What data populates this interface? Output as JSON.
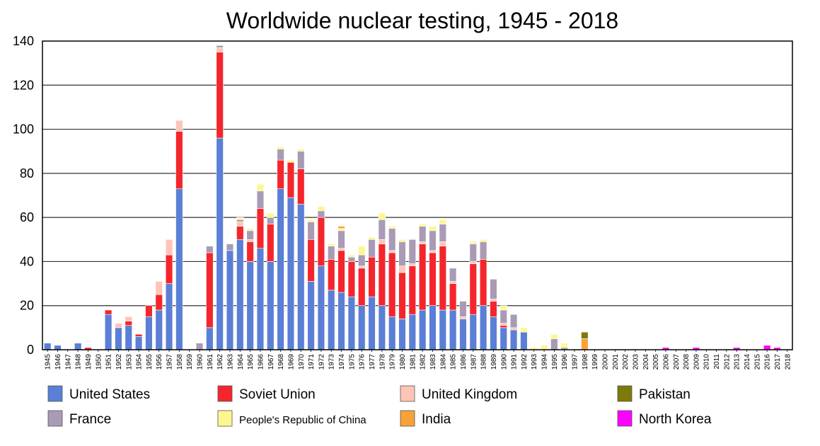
{
  "chart_data": {
    "type": "bar",
    "stacked": true,
    "title": "Worldwide nuclear testing, 1945 - 2018",
    "xlabel": "",
    "ylabel": "",
    "ylim": [
      0,
      140
    ],
    "yticks": [
      0,
      20,
      40,
      60,
      80,
      100,
      120,
      140
    ],
    "grid": true,
    "legend_position": "bottom",
    "categories": [
      "1945",
      "1946",
      "1947",
      "1948",
      "1949",
      "1950",
      "1951",
      "1952",
      "1953",
      "1954",
      "1955",
      "1956",
      "1957",
      "1958",
      "1959",
      "1960",
      "1961",
      "1962",
      "1963",
      "1964",
      "1965",
      "1966",
      "1967",
      "1968",
      "1969",
      "1970",
      "1971",
      "1972",
      "1973",
      "1974",
      "1975",
      "1976",
      "1977",
      "1978",
      "1979",
      "1980",
      "1981",
      "1982",
      "1983",
      "1984",
      "1985",
      "1986",
      "1987",
      "1988",
      "1989",
      "1990",
      "1991",
      "1992",
      "1993",
      "1994",
      "1995",
      "1996",
      "1997",
      "1998",
      "1999",
      "2000",
      "2001",
      "2002",
      "2003",
      "2004",
      "2005",
      "2006",
      "2007",
      "2008",
      "2009",
      "2010",
      "2011",
      "2012",
      "2013",
      "2014",
      "2015",
      "2016",
      "2017",
      "2018"
    ],
    "series": [
      {
        "name": "United States",
        "color": "#5b7fd6",
        "values": [
          3,
          2,
          0,
          3,
          0,
          0,
          16,
          10,
          11,
          6,
          15,
          18,
          30,
          73,
          0,
          0,
          10,
          96,
          45,
          50,
          40,
          46,
          40,
          73,
          69,
          66,
          31,
          38,
          27,
          26,
          24,
          20,
          24,
          20,
          15,
          14,
          16,
          18,
          20,
          18,
          18,
          14,
          16,
          20,
          15,
          10,
          9,
          8,
          0,
          0,
          0,
          0,
          0,
          0,
          0,
          0,
          0,
          0,
          0,
          0,
          0,
          0,
          0,
          0,
          0,
          0,
          0,
          0,
          0,
          0,
          0,
          0,
          0,
          0
        ]
      },
      {
        "name": "Soviet Union",
        "color": "#f4262c",
        "values": [
          0,
          0,
          0,
          0,
          1,
          0,
          2,
          0,
          2,
          1,
          5,
          7,
          13,
          26,
          0,
          0,
          34,
          39,
          0,
          6,
          9,
          18,
          17,
          13,
          16,
          16,
          19,
          22,
          14,
          19,
          16,
          17,
          18,
          28,
          29,
          21,
          22,
          30,
          24,
          29,
          12,
          0,
          23,
          21,
          7,
          1,
          0,
          0,
          0,
          0,
          0,
          0,
          0,
          0,
          0,
          0,
          0,
          0,
          0,
          0,
          0,
          0,
          0,
          0,
          0,
          0,
          0,
          0,
          0,
          0,
          0,
          0,
          0,
          0
        ]
      },
      {
        "name": "United Kingdom",
        "color": "#ffc4b8",
        "values": [
          0,
          0,
          0,
          0,
          0,
          0,
          0,
          2,
          2,
          0,
          0,
          6,
          7,
          5,
          0,
          0,
          0,
          2,
          0,
          2,
          1,
          0,
          0,
          0,
          0,
          0,
          0,
          0,
          0,
          1,
          0,
          1,
          0,
          2,
          1,
          3,
          1,
          1,
          1,
          2,
          1,
          1,
          1,
          0,
          1,
          1,
          1,
          0,
          0,
          0,
          0,
          0,
          0,
          0,
          0,
          0,
          0,
          0,
          0,
          0,
          0,
          0,
          0,
          0,
          0,
          0,
          0,
          0,
          0,
          0,
          0,
          0,
          0,
          0
        ]
      },
      {
        "name": "France",
        "color": "#a99bb6",
        "values": [
          0,
          0,
          0,
          0,
          0,
          0,
          0,
          0,
          0,
          0,
          0,
          0,
          0,
          0,
          0,
          3,
          3,
          1,
          3,
          1,
          4,
          8,
          3,
          5,
          0,
          8,
          8,
          3,
          6,
          8,
          2,
          5,
          8,
          9,
          10,
          11,
          11,
          7,
          9,
          8,
          6,
          7,
          8,
          8,
          9,
          6,
          6,
          0,
          0,
          0,
          5,
          1,
          0,
          0,
          0,
          0,
          0,
          0,
          0,
          0,
          0,
          0,
          0,
          0,
          0,
          0,
          0,
          0,
          0,
          0,
          0,
          0,
          0,
          0
        ]
      },
      {
        "name": "People's Republic of China",
        "color": "#fef791",
        "values": [
          0,
          0,
          0,
          0,
          0,
          0,
          0,
          0,
          0,
          0,
          0,
          0,
          0,
          0,
          0,
          0,
          0,
          0,
          0,
          1,
          1,
          3,
          2,
          1,
          1,
          1,
          1,
          2,
          1,
          1,
          1,
          4,
          1,
          3,
          1,
          1,
          0,
          1,
          2,
          2,
          0,
          0,
          1,
          1,
          0,
          2,
          0,
          2,
          1,
          2,
          2,
          2,
          0,
          0,
          0,
          0,
          0,
          0,
          0,
          0,
          0,
          0,
          0,
          0,
          0,
          0,
          0,
          0,
          0,
          0,
          0,
          0,
          0,
          0
        ]
      },
      {
        "name": "India",
        "color": "#f7a238",
        "values": [
          0,
          0,
          0,
          0,
          0,
          0,
          0,
          0,
          0,
          0,
          0,
          0,
          0,
          0,
          0,
          0,
          0,
          0,
          0,
          0,
          0,
          0,
          0,
          0,
          0,
          0,
          0,
          0,
          0,
          1,
          0,
          0,
          0,
          0,
          0,
          0,
          0,
          0,
          0,
          0,
          0,
          0,
          0,
          0,
          0,
          0,
          0,
          0,
          0,
          0,
          0,
          0,
          0,
          5,
          0,
          0,
          0,
          0,
          0,
          0,
          0,
          0,
          0,
          0,
          0,
          0,
          0,
          0,
          0,
          0,
          0,
          0,
          0,
          0
        ]
      },
      {
        "name": "Pakistan",
        "color": "#7d7a0c",
        "values": [
          0,
          0,
          0,
          0,
          0,
          0,
          0,
          0,
          0,
          0,
          0,
          0,
          0,
          0,
          0,
          0,
          0,
          0,
          0,
          0,
          0,
          0,
          0,
          0,
          0,
          0,
          0,
          0,
          0,
          0,
          0,
          0,
          0,
          0,
          0,
          0,
          0,
          0,
          0,
          0,
          0,
          0,
          0,
          0,
          0,
          0,
          0,
          0,
          0,
          0,
          0,
          0,
          0,
          3,
          0,
          0,
          0,
          0,
          0,
          0,
          0,
          0,
          0,
          0,
          0,
          0,
          0,
          0,
          0,
          0,
          0,
          0,
          0,
          0
        ]
      },
      {
        "name": "North Korea",
        "color": "#ff00ff",
        "values": [
          0,
          0,
          0,
          0,
          0,
          0,
          0,
          0,
          0,
          0,
          0,
          0,
          0,
          0,
          0,
          0,
          0,
          0,
          0,
          0,
          0,
          0,
          0,
          0,
          0,
          0,
          0,
          0,
          0,
          0,
          0,
          0,
          0,
          0,
          0,
          0,
          0,
          0,
          0,
          0,
          0,
          0,
          0,
          0,
          0,
          0,
          0,
          0,
          0,
          0,
          0,
          0,
          0,
          0,
          0,
          0,
          0,
          0,
          0,
          0,
          0,
          1,
          0,
          0,
          1,
          0,
          0,
          0,
          1,
          0,
          0,
          2,
          1,
          0
        ]
      }
    ],
    "legend_order": [
      "United States",
      "Soviet Union",
      "United Kingdom",
      "Pakistan",
      "France",
      "People's Republic of China",
      "India",
      "North Korea"
    ]
  }
}
